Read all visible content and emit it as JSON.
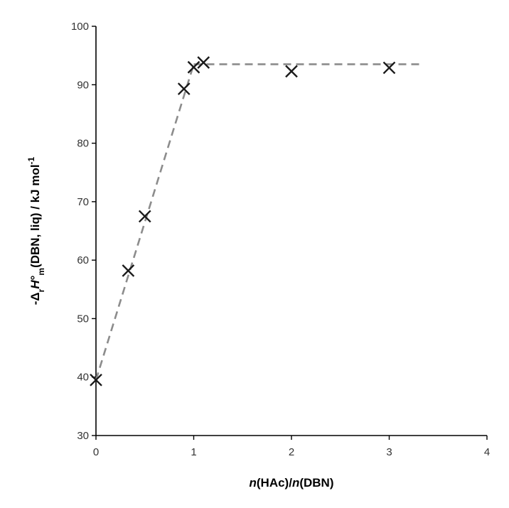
{
  "chart_data": {
    "type": "scatter",
    "title": "",
    "xlim": [
      0,
      4
    ],
    "ylim": [
      30,
      100
    ],
    "x_ticks": [
      0,
      1,
      2,
      3,
      4
    ],
    "y_ticks": [
      30,
      40,
      50,
      60,
      70,
      80,
      90,
      100
    ],
    "grid": false,
    "legend": "none",
    "xlabel": {
      "parts": [
        {
          "text": "n",
          "style": "italic"
        },
        {
          "text": "(HAc)/",
          "style": "normal"
        },
        {
          "text": "n",
          "style": "italic"
        },
        {
          "text": "(DBN)",
          "style": "normal"
        }
      ]
    },
    "ylabel": {
      "parts": [
        {
          "text": "-Δ",
          "style": "normal"
        },
        {
          "text": "r",
          "style": "sub"
        },
        {
          "text": "H",
          "style": "italic"
        },
        {
          "text": "°",
          "style": "normal"
        },
        {
          "text": "m",
          "style": "sub"
        },
        {
          "text": "(DBN, liq) / kJ mol",
          "style": "normal"
        },
        {
          "text": "-1",
          "style": "sup"
        }
      ]
    },
    "series": [
      {
        "marker": "x",
        "color": "#1a1a1a",
        "points": [
          {
            "x": 0.0,
            "y": 39.5
          },
          {
            "x": 0.33,
            "y": 58.2
          },
          {
            "x": 0.5,
            "y": 67.5
          },
          {
            "x": 0.9,
            "y": 89.3
          },
          {
            "x": 1.0,
            "y": 93.0
          },
          {
            "x": 1.1,
            "y": 93.8
          },
          {
            "x": 2.0,
            "y": 92.3
          },
          {
            "x": 3.0,
            "y": 92.9
          }
        ]
      }
    ],
    "fit_lines": [
      {
        "style": "dashed",
        "color": "#8c8c8c",
        "points": [
          {
            "x": 0.0,
            "y": 39.5
          },
          {
            "x": 1.0,
            "y": 93.5
          }
        ]
      },
      {
        "style": "dashed",
        "color": "#8c8c8c",
        "points": [
          {
            "x": 1.0,
            "y": 93.5
          },
          {
            "x": 3.35,
            "y": 93.5
          }
        ]
      }
    ]
  }
}
